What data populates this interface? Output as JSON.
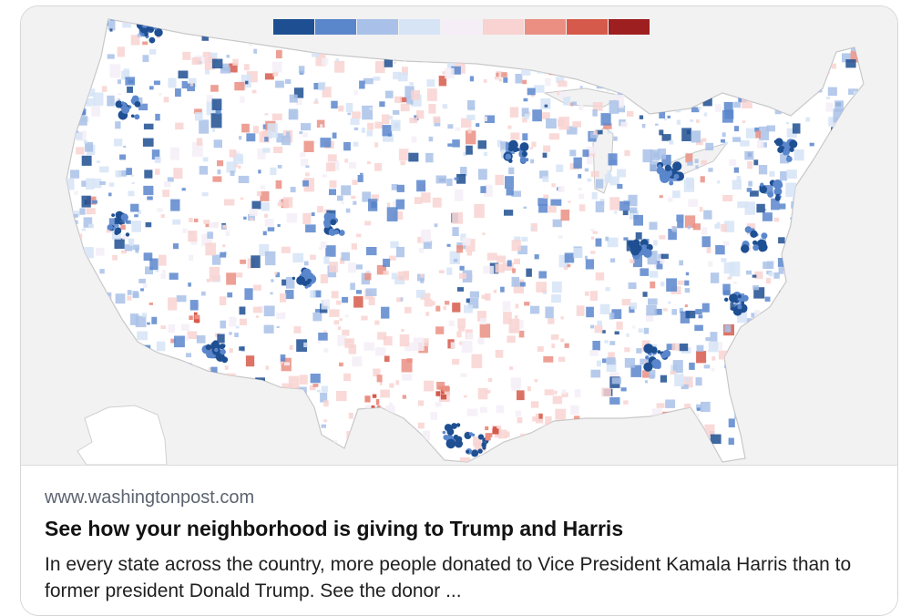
{
  "link_preview": {
    "domain": "www.washingtonpost.com",
    "headline": "See how your neighborhood is giving to Trump and Harris",
    "description": "In every state across the country, more people donated to Vice President Kamala Harris than to former president Donald Trump. See the donor ..."
  },
  "map": {
    "legend_colors": [
      "#1e4f92",
      "#5a86cc",
      "#a9c1e8",
      "#d6e4f6",
      "#f5eef7",
      "#f8d3d1",
      "#ea8f82",
      "#d65a4b",
      "#9e1f1f"
    ]
  }
}
